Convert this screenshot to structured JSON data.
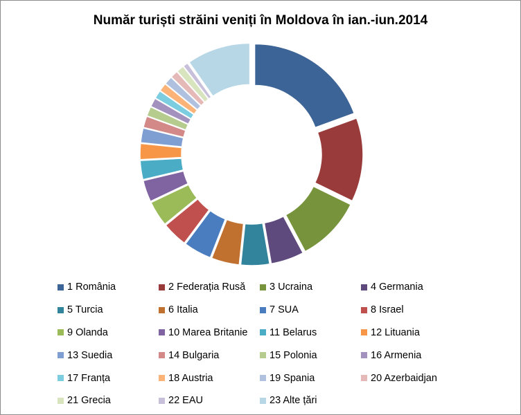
{
  "chart_data": {
    "type": "donut",
    "title": "Număr turiști străini veniți în Moldova în ian.-iun.2014",
    "series": [
      {
        "name": "1 România",
        "value": 20.0,
        "color": "#3c6496"
      },
      {
        "name": "2 Federația Rusă",
        "value": 13.2,
        "color": "#983b3a"
      },
      {
        "name": "3 Ucraina",
        "value": 10.3,
        "color": "#77933c"
      },
      {
        "name": "4 Germania",
        "value": 5.2,
        "color": "#5f4a7e"
      },
      {
        "name": "5 Turcia",
        "value": 4.5,
        "color": "#31849b"
      },
      {
        "name": "6 Italia",
        "value": 4.4,
        "color": "#c0702f"
      },
      {
        "name": "7 SUA",
        "value": 4.4,
        "color": "#4a7dbf"
      },
      {
        "name": "8 Israel",
        "value": 4.0,
        "color": "#c0504d"
      },
      {
        "name": "9 Olanda",
        "value": 4.0,
        "color": "#9bbb59"
      },
      {
        "name": "10 Marea Britanie",
        "value": 3.4,
        "color": "#8064a2"
      },
      {
        "name": "11 Belarus",
        "value": 3.0,
        "color": "#4bacc6"
      },
      {
        "name": "12 Lituania",
        "value": 2.5,
        "color": "#f79646"
      },
      {
        "name": "13 Suedia",
        "value": 2.3,
        "color": "#7f9fd3"
      },
      {
        "name": "14 Bulgaria",
        "value": 1.8,
        "color": "#d28987"
      },
      {
        "name": "15 Polonia",
        "value": 1.5,
        "color": "#b5cc8e"
      },
      {
        "name": "16 Armenia",
        "value": 1.4,
        "color": "#a392bd"
      },
      {
        "name": "17 Franța",
        "value": 1.3,
        "color": "#7ccde0"
      },
      {
        "name": "18 Austria",
        "value": 1.3,
        "color": "#fbb378"
      },
      {
        "name": "19 Spania",
        "value": 1.3,
        "color": "#b0c1e0"
      },
      {
        "name": "20 Azerbaidjan",
        "value": 1.2,
        "color": "#e5b9b8"
      },
      {
        "name": "21 Grecia",
        "value": 1.2,
        "color": "#d7e4bd"
      },
      {
        "name": "22 EAU",
        "value": 0.8,
        "color": "#c8c0da"
      },
      {
        "name": "23 Alte țări",
        "value": 10.0,
        "color": "#b7d7e6"
      }
    ],
    "legend_position": "bottom"
  }
}
